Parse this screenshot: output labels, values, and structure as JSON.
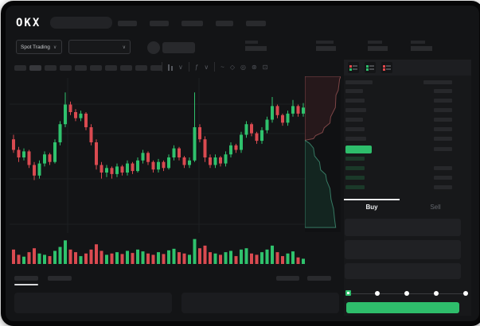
{
  "brand": {
    "logo_text": "OKX"
  },
  "market_bar": {
    "market_selector": {
      "label": "Spot Trading",
      "chevron": "∨"
    },
    "pair_selector": {
      "chevron": "∨"
    }
  },
  "toolbar_icons": [
    "candle-type-icon",
    "chevron-down-icon",
    "indicators-icon",
    "chevron-down-icon",
    "wave-icon",
    "draw-icon",
    "camera-icon",
    "settings-gear-icon",
    "fullscreen-icon"
  ],
  "orderbook": {
    "view_toggles": [
      {
        "name": "book-combined-view",
        "square_colors": [
          "#e0494d",
          "#2ebd6b"
        ]
      },
      {
        "name": "book-bids-view",
        "square_colors": [
          "#2ebd6b",
          "#2ebd6b"
        ]
      },
      {
        "name": "book-asks-view",
        "square_colors": [
          "#e0494d",
          "#e0494d"
        ]
      }
    ],
    "ask_rows": 6,
    "bid_rows": 4,
    "last_price_highlight_color": "#2ebd6b"
  },
  "order_form": {
    "buy_tab": "Buy",
    "sell_tab": "Sell",
    "input_rows": 3,
    "slider_steps": 5,
    "submit_color": "#2ebd6b"
  },
  "placeholders": {
    "nav_item_widths": [
      24,
      24,
      27,
      22,
      25
    ],
    "timeframe_chips": 10,
    "ticker_stats": [
      {
        "label_w": 16,
        "value_w": 27
      },
      {
        "label_w": 22,
        "value_w": 25
      },
      {
        "label_w": 18,
        "value_w": 25
      },
      {
        "label_w": 18,
        "value_w": 27
      }
    ]
  },
  "colors": {
    "up": "#2fc26d",
    "down": "#da4a50",
    "depth_ask_fill": "rgba(196,80,82,0.13)",
    "depth_ask_stroke": "rgba(205,110,110,0.55)",
    "depth_bid_fill": "rgba(46,180,120,0.13)",
    "depth_bid_stroke": "rgba(85,200,160,0.55)",
    "bid_placeholder": "rgba(46,189,107,0.20)"
  },
  "chart_data": {
    "type": "candlestick",
    "subcharts": [
      "price-candles",
      "volume-bars",
      "orderbook-depth"
    ],
    "ylim": [
      0,
      100
    ],
    "grid": "faint horizontal + vertical lines",
    "candles_ohlc_note": "arrays are [open, high, low, close] in 0-100 chart units",
    "candles": [
      [
        62,
        65,
        53,
        55
      ],
      [
        55,
        57,
        47,
        50
      ],
      [
        50,
        56,
        48,
        54
      ],
      [
        54,
        55,
        43,
        45
      ],
      [
        45,
        47,
        35,
        38
      ],
      [
        38,
        48,
        36,
        46
      ],
      [
        46,
        54,
        44,
        52
      ],
      [
        52,
        53,
        45,
        47
      ],
      [
        47,
        62,
        46,
        60
      ],
      [
        60,
        74,
        58,
        72
      ],
      [
        72,
        93,
        70,
        85
      ],
      [
        85,
        87,
        78,
        80
      ],
      [
        80,
        82,
        74,
        76
      ],
      [
        76,
        81,
        74,
        79
      ],
      [
        79,
        80,
        68,
        70
      ],
      [
        70,
        72,
        58,
        60
      ],
      [
        60,
        62,
        42,
        45
      ],
      [
        45,
        47,
        36,
        40
      ],
      [
        40,
        45,
        37,
        43
      ],
      [
        43,
        44,
        36,
        39
      ],
      [
        39,
        46,
        37,
        44
      ],
      [
        44,
        45,
        38,
        40
      ],
      [
        40,
        48,
        38,
        46
      ],
      [
        46,
        47,
        39,
        41
      ],
      [
        41,
        50,
        40,
        48
      ],
      [
        48,
        55,
        46,
        53
      ],
      [
        53,
        54,
        45,
        47
      ],
      [
        47,
        48,
        40,
        42
      ],
      [
        42,
        49,
        40,
        47
      ],
      [
        47,
        48,
        41,
        43
      ],
      [
        43,
        52,
        42,
        50
      ],
      [
        50,
        58,
        48,
        56
      ],
      [
        56,
        57,
        48,
        50
      ],
      [
        50,
        51,
        43,
        45
      ],
      [
        45,
        50,
        43,
        48
      ],
      [
        48,
        93,
        47,
        70
      ],
      [
        70,
        72,
        60,
        62
      ],
      [
        62,
        64,
        47,
        50
      ],
      [
        50,
        52,
        43,
        45
      ],
      [
        45,
        52,
        43,
        50
      ],
      [
        50,
        51,
        44,
        46
      ],
      [
        46,
        54,
        44,
        52
      ],
      [
        52,
        60,
        50,
        58
      ],
      [
        58,
        59,
        53,
        55
      ],
      [
        55,
        67,
        53,
        65
      ],
      [
        65,
        74,
        63,
        72
      ],
      [
        72,
        73,
        64,
        66
      ],
      [
        66,
        67,
        59,
        61
      ],
      [
        61,
        70,
        59,
        68
      ],
      [
        68,
        77,
        66,
        75
      ],
      [
        75,
        90,
        73,
        84
      ],
      [
        84,
        85,
        76,
        78
      ],
      [
        78,
        79,
        71,
        73
      ],
      [
        73,
        81,
        71,
        79
      ],
      [
        79,
        88,
        77,
        84
      ],
      [
        84,
        85,
        77,
        79
      ],
      [
        79,
        86,
        77,
        83
      ]
    ],
    "volume": [
      55,
      35,
      28,
      45,
      60,
      40,
      35,
      30,
      50,
      65,
      90,
      55,
      45,
      30,
      40,
      55,
      75,
      50,
      35,
      40,
      45,
      38,
      50,
      42,
      55,
      48,
      40,
      35,
      45,
      38,
      52,
      58,
      45,
      40,
      35,
      95,
      60,
      70,
      45,
      40,
      35,
      45,
      50,
      30,
      55,
      60,
      40,
      35,
      45,
      55,
      70,
      45,
      30,
      40,
      48,
      25,
      20
    ],
    "depth": {
      "asks_polygon": [
        [
          0,
          0
        ],
        [
          1,
          0
        ],
        [
          0.97,
          0.02
        ],
        [
          0.93,
          0.09
        ],
        [
          0.87,
          0.12
        ],
        [
          0.85,
          0.2
        ],
        [
          0.72,
          0.26
        ],
        [
          0.7,
          0.3
        ],
        [
          0.54,
          0.33
        ],
        [
          0.49,
          0.36
        ],
        [
          0.3,
          0.38
        ],
        [
          0.24,
          0.4
        ],
        [
          0,
          0.41
        ]
      ],
      "bids_polygon": [
        [
          0,
          0.41
        ],
        [
          0.13,
          0.43
        ],
        [
          0.24,
          0.46
        ],
        [
          0.27,
          0.51
        ],
        [
          0.41,
          0.55
        ],
        [
          0.44,
          0.6
        ],
        [
          0.58,
          0.63
        ],
        [
          0.61,
          0.67
        ],
        [
          0.7,
          0.72
        ],
        [
          0.73,
          0.79
        ],
        [
          0.8,
          0.85
        ],
        [
          0.83,
          0.92
        ],
        [
          0.86,
          0.97
        ],
        [
          0,
          0.97
        ]
      ]
    }
  }
}
